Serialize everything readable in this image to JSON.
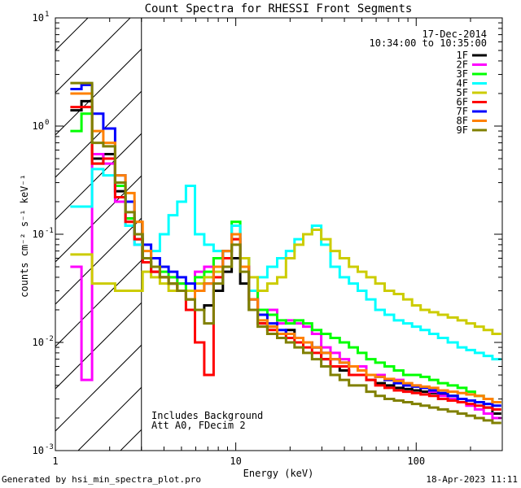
{
  "chart_data": {
    "type": "line",
    "title": "Count Spectra for RHESSI Front Segments",
    "xlabel": "Energy (keV)",
    "ylabel": "counts cm⁻² s⁻¹ keV⁻¹",
    "xscale": "log",
    "yscale": "log",
    "xlim": [
      1,
      300
    ],
    "ylim": [
      0.001,
      10
    ],
    "x_ticks": [
      {
        "value": 1,
        "label": "1"
      },
      {
        "value": 10,
        "label": "10"
      },
      {
        "value": 100,
        "label": "100"
      }
    ],
    "y_ticks": [
      {
        "value": 0.001,
        "base": "10",
        "exp": "-3"
      },
      {
        "value": 0.01,
        "base": "10",
        "exp": "-2"
      },
      {
        "value": 0.1,
        "base": "10",
        "exp": "-1"
      },
      {
        "value": 1,
        "base": "10",
        "exp": "0"
      },
      {
        "value": 10,
        "base": "10",
        "exp": "1"
      }
    ],
    "date": "17-Dec-2014",
    "time_range": "10:34:00 to 10:35:00",
    "hatched_region": {
      "x_from": 1,
      "x_to": 3
    },
    "annotations": [
      "Includes Background",
      "Att A0, FDecim 2"
    ],
    "x": [
      1.3,
      1.5,
      1.7,
      2.0,
      2.3,
      2.6,
      2.9,
      3.2,
      3.6,
      4.0,
      4.5,
      5.0,
      5.6,
      6.3,
      7.1,
      8.0,
      9.0,
      10.0,
      11.2,
      12.5,
      14.0,
      16.0,
      18.0,
      20.0,
      22.4,
      25.0,
      28.0,
      31.6,
      35.5,
      40.0,
      45.0,
      50.0,
      56.0,
      63.0,
      71.0,
      80.0,
      90.0,
      100.0,
      112.0,
      125.0,
      140.0,
      160.0,
      180.0,
      200.0,
      224.0,
      250.0,
      280.0
    ],
    "series": [
      {
        "name": "1F",
        "color": "#000000",
        "values": [
          1.4,
          1.7,
          0.5,
          0.55,
          0.25,
          0.14,
          0.09,
          0.055,
          0.045,
          0.04,
          0.035,
          0.03,
          0.025,
          0.02,
          0.022,
          0.03,
          0.045,
          0.06,
          0.035,
          0.02,
          0.015,
          0.014,
          0.012,
          0.013,
          0.011,
          0.01,
          0.009,
          0.007,
          0.006,
          0.0055,
          0.005,
          0.005,
          0.0045,
          0.0042,
          0.004,
          0.0038,
          0.0037,
          0.0036,
          0.0035,
          0.0034,
          0.0033,
          0.0032,
          0.003,
          0.0029,
          0.0028,
          0.0025,
          0.0022
        ]
      },
      {
        "name": "2F",
        "color": "#ff00ff",
        "values": [
          0.05,
          0.0045,
          0.55,
          0.45,
          0.2,
          0.12,
          0.08,
          0.06,
          0.045,
          0.04,
          0.04,
          0.035,
          0.03,
          0.045,
          0.05,
          0.06,
          0.06,
          0.12,
          0.06,
          0.03,
          0.02,
          0.02,
          0.015,
          0.016,
          0.015,
          0.014,
          0.012,
          0.009,
          0.008,
          0.007,
          0.006,
          0.006,
          0.005,
          0.005,
          0.0045,
          0.0045,
          0.004,
          0.004,
          0.0038,
          0.0035,
          0.0032,
          0.003,
          0.0028,
          0.0026,
          0.0024,
          0.0022,
          0.002
        ]
      },
      {
        "name": "3F",
        "color": "#00ff00",
        "values": [
          0.9,
          1.3,
          0.45,
          0.5,
          0.28,
          0.14,
          0.09,
          0.06,
          0.05,
          0.045,
          0.04,
          0.035,
          0.03,
          0.04,
          0.045,
          0.06,
          0.07,
          0.13,
          0.06,
          0.03,
          0.02,
          0.018,
          0.016,
          0.015,
          0.016,
          0.015,
          0.013,
          0.012,
          0.011,
          0.01,
          0.009,
          0.008,
          0.007,
          0.0065,
          0.006,
          0.0055,
          0.005,
          0.005,
          0.0048,
          0.0045,
          0.0042,
          0.004,
          0.0038,
          0.0035,
          0.0032,
          0.003,
          0.0028
        ]
      },
      {
        "name": "4F",
        "color": "#00ffff",
        "values": [
          0.18,
          0.18,
          0.4,
          0.35,
          0.22,
          0.12,
          0.08,
          0.06,
          0.07,
          0.1,
          0.15,
          0.2,
          0.28,
          0.1,
          0.08,
          0.07,
          0.06,
          0.12,
          0.05,
          0.03,
          0.04,
          0.05,
          0.06,
          0.07,
          0.09,
          0.1,
          0.12,
          0.08,
          0.05,
          0.04,
          0.035,
          0.03,
          0.025,
          0.02,
          0.018,
          0.016,
          0.015,
          0.014,
          0.013,
          0.012,
          0.011,
          0.01,
          0.009,
          0.0085,
          0.008,
          0.0075,
          0.007
        ]
      },
      {
        "name": "5F",
        "color": "#cccc00",
        "values": [
          0.065,
          0.065,
          0.035,
          0.035,
          0.03,
          0.03,
          0.03,
          0.045,
          0.04,
          0.035,
          0.03,
          0.03,
          0.03,
          0.035,
          0.04,
          0.045,
          0.05,
          0.09,
          0.06,
          0.04,
          0.03,
          0.035,
          0.04,
          0.06,
          0.08,
          0.1,
          0.11,
          0.09,
          0.07,
          0.06,
          0.05,
          0.045,
          0.04,
          0.035,
          0.03,
          0.028,
          0.025,
          0.022,
          0.02,
          0.019,
          0.018,
          0.017,
          0.016,
          0.015,
          0.014,
          0.013,
          0.012
        ]
      },
      {
        "name": "6F",
        "color": "#ff0000",
        "values": [
          1.5,
          1.5,
          0.45,
          0.5,
          0.22,
          0.13,
          0.09,
          0.055,
          0.045,
          0.04,
          0.035,
          0.03,
          0.02,
          0.01,
          0.005,
          0.04,
          0.06,
          0.09,
          0.05,
          0.025,
          0.015,
          0.013,
          0.012,
          0.011,
          0.01,
          0.009,
          0.008,
          0.007,
          0.006,
          0.006,
          0.005,
          0.005,
          0.0045,
          0.004,
          0.0038,
          0.0036,
          0.0035,
          0.0034,
          0.0033,
          0.0032,
          0.003,
          0.0029,
          0.0028,
          0.0027,
          0.0026,
          0.0025,
          0.0024
        ]
      },
      {
        "name": "7F",
        "color": "#0000ff",
        "values": [
          2.2,
          2.4,
          1.3,
          0.95,
          0.35,
          0.2,
          0.1,
          0.08,
          0.06,
          0.05,
          0.045,
          0.04,
          0.035,
          0.03,
          0.035,
          0.05,
          0.07,
          0.1,
          0.05,
          0.025,
          0.018,
          0.015,
          0.013,
          0.012,
          0.011,
          0.01,
          0.009,
          0.008,
          0.007,
          0.0065,
          0.006,
          0.0055,
          0.005,
          0.0048,
          0.0045,
          0.0042,
          0.004,
          0.0039,
          0.0038,
          0.0036,
          0.0034,
          0.0032,
          0.003,
          0.0029,
          0.0028,
          0.0027,
          0.0026
        ]
      },
      {
        "name": "8F",
        "color": "#ff8000",
        "values": [
          2.0,
          2.0,
          0.9,
          0.7,
          0.35,
          0.24,
          0.13,
          0.07,
          0.05,
          0.04,
          0.035,
          0.03,
          0.025,
          0.03,
          0.035,
          0.05,
          0.07,
          0.1,
          0.05,
          0.025,
          0.016,
          0.014,
          0.012,
          0.012,
          0.011,
          0.01,
          0.009,
          0.008,
          0.007,
          0.0065,
          0.006,
          0.0055,
          0.005,
          0.0048,
          0.0046,
          0.0044,
          0.0042,
          0.004,
          0.0039,
          0.0038,
          0.0036,
          0.0035,
          0.0034,
          0.0033,
          0.0032,
          0.003,
          0.0028
        ]
      },
      {
        "name": "9F",
        "color": "#808000",
        "values": [
          2.5,
          2.5,
          0.7,
          0.65,
          0.3,
          0.16,
          0.1,
          0.06,
          0.05,
          0.04,
          0.035,
          0.03,
          0.025,
          0.02,
          0.015,
          0.035,
          0.05,
          0.08,
          0.045,
          0.02,
          0.014,
          0.012,
          0.011,
          0.01,
          0.009,
          0.008,
          0.007,
          0.006,
          0.005,
          0.0045,
          0.004,
          0.004,
          0.0035,
          0.0032,
          0.003,
          0.0029,
          0.0028,
          0.0027,
          0.0026,
          0.0025,
          0.0024,
          0.0023,
          0.0022,
          0.0021,
          0.002,
          0.0019,
          0.0018
        ]
      }
    ]
  },
  "footer": {
    "generated_by": "Generated by hsi_min_spectra_plot.pro",
    "timestamp": "18-Apr-2023 11:11"
  }
}
